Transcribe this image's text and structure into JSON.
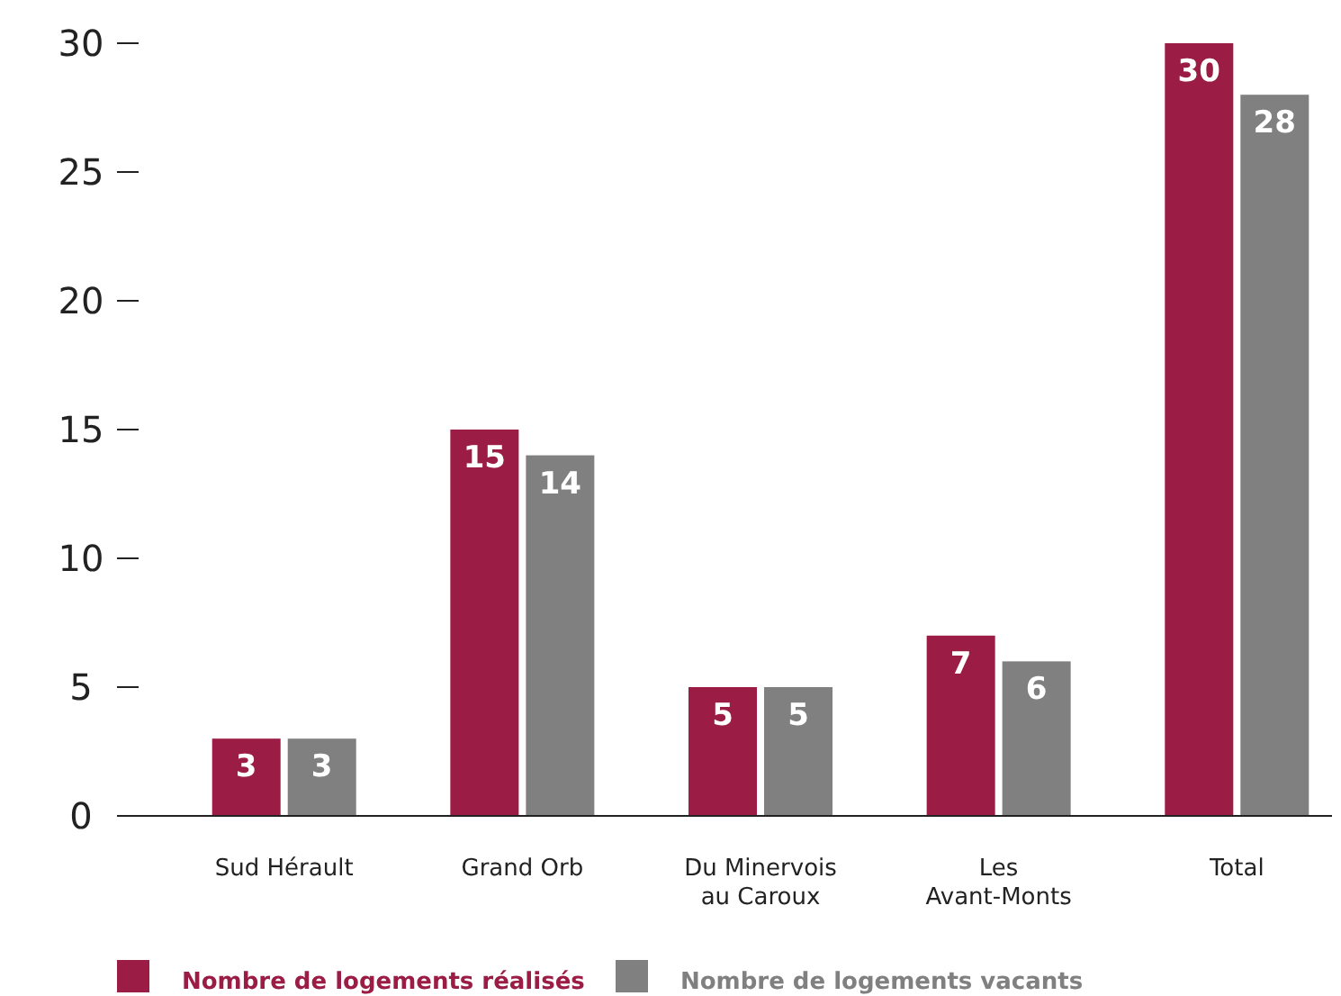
{
  "chart_data": {
    "type": "bar",
    "categories": [
      "Sud Hérault",
      "Grand Orb",
      "Du Minervois au Caroux",
      "Les Avant-Monts",
      "Total"
    ],
    "series": [
      {
        "name": "Nombre de logements réalisés",
        "color": "#9b1d45",
        "values": [
          3,
          15,
          5,
          7,
          30
        ]
      },
      {
        "name": "Nombre de logements vacants",
        "color": "#808080",
        "values": [
          3,
          14,
          5,
          6,
          28
        ]
      }
    ],
    "ylim": [
      0,
      30
    ],
    "yticks": [
      0,
      5,
      10,
      15,
      20,
      25,
      30
    ],
    "data_labels": true,
    "grid": false,
    "legend": "bottom left"
  }
}
